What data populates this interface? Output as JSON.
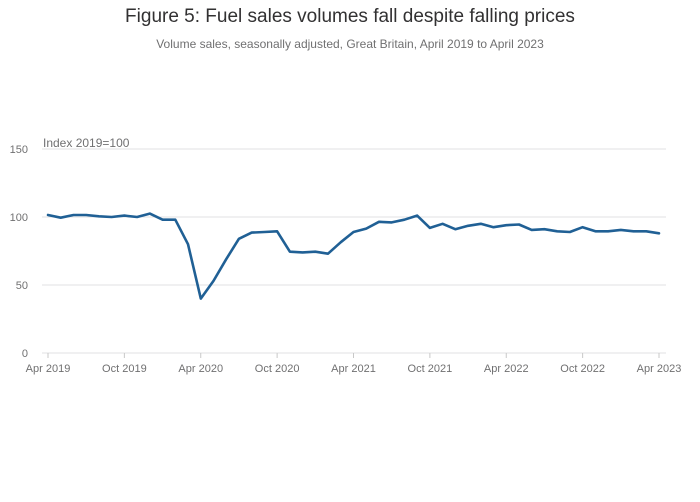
{
  "chart_data": {
    "type": "line",
    "title": "Figure 5: Fuel sales volumes fall despite falling prices",
    "subtitle": "Volume sales, seasonally adjusted, Great Britain, April 2019 to April 2023",
    "y_unit_label": "Index 2019=100",
    "xlabel": "",
    "ylabel": "",
    "ylim": [
      0,
      150
    ],
    "y_ticks": [
      0,
      50,
      100,
      150
    ],
    "x_tick_labels": [
      "Apr 2019",
      "Oct 2019",
      "Apr 2020",
      "Oct 2020",
      "Apr 2021",
      "Oct 2021",
      "Apr 2022",
      "Oct 2022",
      "Apr 2023"
    ],
    "grid": true,
    "line_color": "#206095",
    "x": [
      "Apr 2019",
      "May 2019",
      "Jun 2019",
      "Jul 2019",
      "Aug 2019",
      "Sep 2019",
      "Oct 2019",
      "Nov 2019",
      "Dec 2019",
      "Jan 2020",
      "Feb 2020",
      "Mar 2020",
      "Apr 2020",
      "May 2020",
      "Jun 2020",
      "Jul 2020",
      "Aug 2020",
      "Sep 2020",
      "Oct 2020",
      "Nov 2020",
      "Dec 2020",
      "Jan 2021",
      "Feb 2021",
      "Mar 2021",
      "Apr 2021",
      "May 2021",
      "Jun 2021",
      "Jul 2021",
      "Aug 2021",
      "Sep 2021",
      "Oct 2021",
      "Nov 2021",
      "Dec 2021",
      "Jan 2022",
      "Feb 2022",
      "Mar 2022",
      "Apr 2022",
      "May 2022",
      "Jun 2022",
      "Jul 2022",
      "Aug 2022",
      "Sep 2022",
      "Oct 2022",
      "Nov 2022",
      "Dec 2022",
      "Jan 2023",
      "Feb 2023",
      "Mar 2023",
      "Apr 2023"
    ],
    "series": [
      {
        "values": [
          101.5,
          99.5,
          101.5,
          101.5,
          100.5,
          100.0,
          101.0,
          100.0,
          102.5,
          98.0,
          98.0,
          80.0,
          40.0,
          53.0,
          69.0,
          84.0,
          88.5,
          89.0,
          89.5,
          74.5,
          74.0,
          74.5,
          73.0,
          81.5,
          89.0,
          91.5,
          96.5,
          96.0,
          98.0,
          101.0,
          92.0,
          95.0,
          91.0,
          93.5,
          95.0,
          92.5,
          94.0,
          94.5,
          90.5,
          91.0,
          89.5,
          89.0,
          92.5,
          89.5,
          89.5,
          90.5,
          89.5,
          89.5,
          88.0
        ]
      }
    ]
  }
}
